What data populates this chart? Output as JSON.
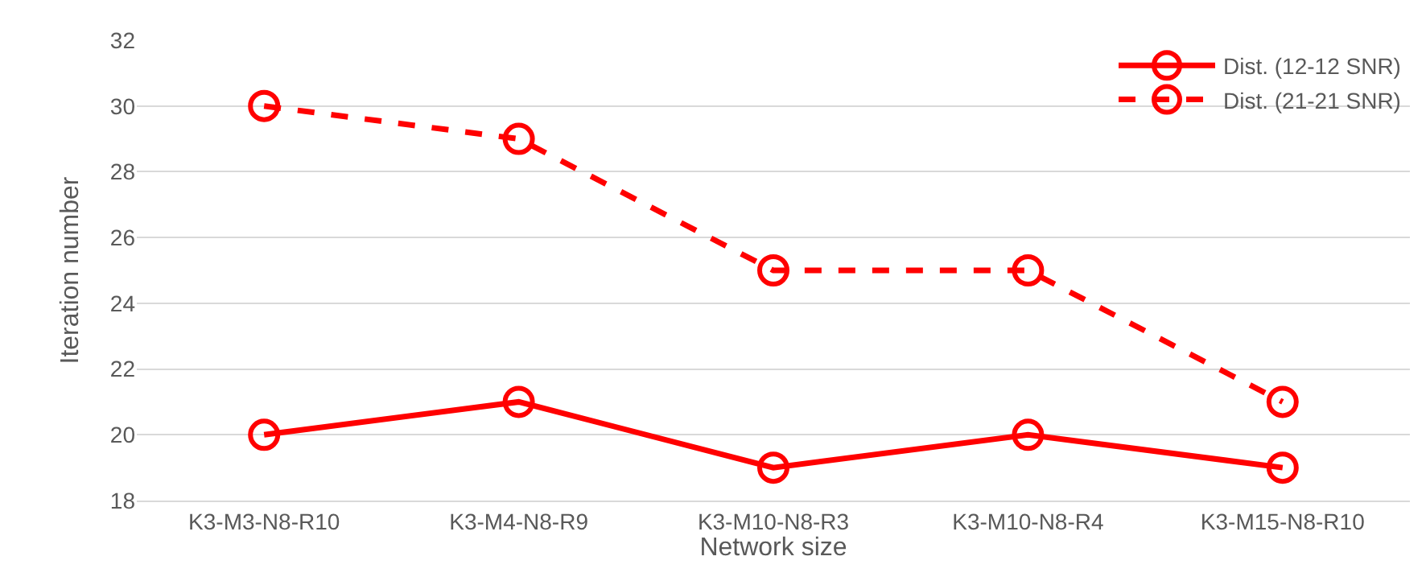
{
  "chart_data": {
    "type": "line",
    "xlabel": "Network size",
    "ylabel": "Iteration number",
    "categories": [
      "K3-M3-N8-R10",
      "K3-M4-N8-R9",
      "K3-M10-N8-R3",
      "K3-M10-N8-R4",
      "K3-M15-N8-R10"
    ],
    "series": [
      {
        "name": "Dist. (12-12 SNR)",
        "color": "#ff0000",
        "line_style": "solid",
        "values": [
          20,
          21,
          19,
          20,
          19
        ]
      },
      {
        "name": "Dist. (21-21 SNR)",
        "color": "#ff0000",
        "line_style": "dashed",
        "values": [
          30,
          29,
          25,
          25,
          21
        ]
      }
    ],
    "ylim": [
      18,
      32
    ],
    "yticks": [
      18,
      20,
      22,
      24,
      26,
      28,
      30,
      32
    ],
    "grid": "y",
    "legend": "top right",
    "marker": "circle"
  }
}
